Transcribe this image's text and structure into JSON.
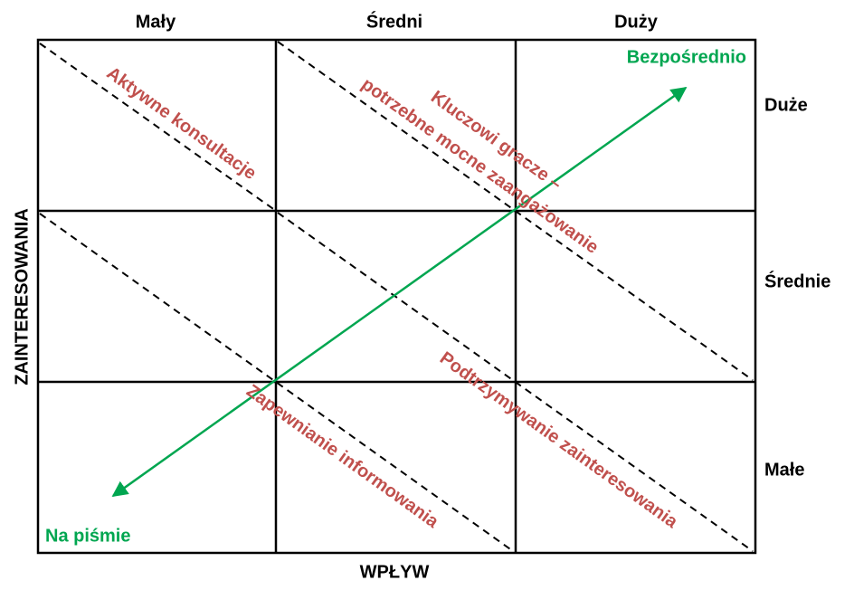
{
  "columns": [
    "Mały",
    "Średni",
    "Duży"
  ],
  "rows": [
    "Duże",
    "Średnie",
    "Małe"
  ],
  "x_axis_label": "WPŁYW",
  "y_axis_label": "ZAINTERESOWANIA",
  "zones": {
    "consult": "Aktywne konsultacje",
    "key_line1": "Kluczowi gracze –",
    "key_line2": "potrzebne mocne zaangażowanie",
    "maintain": "Podtrzymywanie zainteresowania",
    "inform": "Zapewnianie informowania"
  },
  "arrow": {
    "high_end": "Bezpośrednio",
    "low_end": "Na piśmie"
  }
}
